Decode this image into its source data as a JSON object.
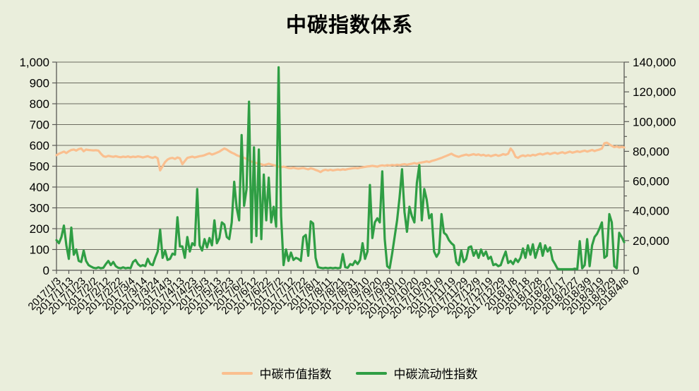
{
  "title": "中碳指数体系",
  "colors": {
    "background": "#EAEEDC",
    "gridline": "#6B6B5F",
    "axis_line": "#595955",
    "market_series": "#FABF8F",
    "liquidity_series": "#2F9E44",
    "text": "#000000"
  },
  "legend": {
    "items": [
      {
        "label": "中碳市值指数",
        "color": "#FABF8F"
      },
      {
        "label": "中碳流动性指数",
        "color": "#2F9E44"
      }
    ]
  },
  "chart_data": {
    "type": "line",
    "title": "中碳指数体系",
    "grid": "horizontal-on",
    "legend_position": "bottom",
    "left_axis": {
      "min": 0,
      "max": 1000,
      "step": 100,
      "tick_labels": [
        "0",
        "100",
        "200",
        "300",
        "400",
        "500",
        "600",
        "700",
        "800",
        "900",
        "1,000"
      ]
    },
    "right_axis": {
      "min": 0,
      "max": 140000,
      "step": 20000,
      "minor_step": 10000,
      "tick_labels": [
        "0",
        "20,000",
        "40,000",
        "60,000",
        "80,000",
        "100,000",
        "120,000",
        "140,000"
      ]
    },
    "x_axis": {
      "first_date": "2017/1/3",
      "last_date": "2018/4/8",
      "tick_interval_days": 10,
      "tick_labels": [
        "2017/1/3",
        "2017/1/13",
        "2017/1/23",
        "2017/2/2",
        "2017/2/12",
        "2017/2/22",
        "2017/3/4",
        "2017/3/14",
        "2017/3/24",
        "2017/4/3",
        "2017/4/13",
        "2017/4/23",
        "2017/5/3",
        "2017/5/13",
        "2017/5/23",
        "2017/6/2",
        "2017/6/12",
        "2017/6/22",
        "2017/7/2",
        "2017/7/12",
        "2017/7/22",
        "2017/8/1",
        "2017/8/11",
        "2017/8/21",
        "2017/8/31",
        "2017/9/10",
        "2017/9/20",
        "2017/9/30",
        "2017/10/10",
        "2017/10/20",
        "2017/10/30",
        "2017/11/9",
        "2017/11/19",
        "2017/11/29",
        "2017/12/9",
        "2017/12/19",
        "2017/12/29",
        "2018/1/8",
        "2018/1/18",
        "2018/1/28",
        "2018/2/7",
        "2018/2/17",
        "2018/2/27",
        "2018/3/9",
        "2018/3/19",
        "2018/3/29",
        "2018/4/8"
      ]
    },
    "sample_start_day": 0,
    "sample_step_days": 2,
    "series": [
      {
        "name": "中碳市值指数",
        "axis": "left",
        "color": "#FABF8F",
        "values": [
          553,
          560,
          565,
          570,
          563,
          572,
          578,
          580,
          575,
          582,
          585,
          572,
          580,
          578,
          577,
          576,
          577,
          575,
          560,
          548,
          545,
          550,
          547,
          545,
          548,
          545,
          543,
          546,
          544,
          547,
          543,
          546,
          544,
          547,
          545,
          542,
          545,
          548,
          543,
          540,
          545,
          538,
          480,
          500,
          520,
          532,
          538,
          540,
          535,
          542,
          538,
          510,
          525,
          540,
          543,
          546,
          542,
          545,
          548,
          550,
          553,
          558,
          562,
          556,
          560,
          565,
          570,
          578,
          585,
          580,
          572,
          565,
          560,
          553,
          548,
          545,
          540,
          535,
          528,
          522,
          518,
          515,
          512,
          510,
          505,
          508,
          512,
          508,
          505,
          502,
          498,
          495,
          498,
          495,
          492,
          490,
          493,
          490,
          488,
          490,
          492,
          488,
          485,
          490,
          487,
          482,
          478,
          472,
          480,
          483,
          480,
          483,
          480,
          482,
          484,
          482,
          485,
          483,
          486,
          488,
          490,
          492,
          490,
          493,
          495,
          497,
          499,
          500,
          502,
          500,
          498,
          502,
          504,
          502,
          505,
          503,
          506,
          504,
          507,
          505,
          508,
          510,
          507,
          510,
          512,
          515,
          512,
          516,
          518,
          520,
          523,
          520,
          525,
          528,
          532,
          536,
          540,
          545,
          550,
          555,
          560,
          553,
          548,
          545,
          550,
          553,
          556,
          552,
          555,
          558,
          554,
          557,
          552,
          555,
          550,
          553,
          548,
          552,
          555,
          550,
          553,
          558,
          555,
          560,
          585,
          570,
          545,
          540,
          548,
          552,
          548,
          553,
          550,
          555,
          552,
          557,
          560,
          556,
          560,
          563,
          558,
          562,
          565,
          560,
          564,
          567,
          562,
          566,
          570,
          565,
          568,
          572,
          568,
          572,
          575,
          570,
          574,
          578,
          573,
          577,
          580,
          585,
          610,
          613,
          605,
          598,
          592,
          595,
          590,
          593,
          590
        ]
      },
      {
        "name": "中碳流动性指数",
        "axis": "right",
        "color": "#2F9E44",
        "values": [
          20300,
          18200,
          22400,
          30100,
          16800,
          7700,
          28700,
          10500,
          14000,
          6300,
          5600,
          13300,
          6300,
          3500,
          2500,
          1700,
          1400,
          2000,
          1400,
          1700,
          4200,
          6300,
          3500,
          5600,
          2800,
          1700,
          1400,
          2000,
          1400,
          1700,
          1400,
          5600,
          7000,
          4200,
          2800,
          3500,
          2800,
          7700,
          4200,
          3500,
          8400,
          12600,
          27300,
          8400,
          13300,
          7000,
          7700,
          11200,
          10500,
          35700,
          16100,
          16100,
          8400,
          22400,
          12600,
          18200,
          16800,
          54600,
          16800,
          13300,
          21000,
          15400,
          21700,
          16800,
          33600,
          18200,
          21700,
          32200,
          30800,
          22400,
          21000,
          32200,
          59500,
          42000,
          33600,
          91000,
          43400,
          54600,
          113400,
          18900,
          82600,
          23100,
          81200,
          21000,
          64400,
          33600,
          62300,
          32200,
          42700,
          29400,
          136500,
          36400,
          3500,
          14000,
          6300,
          11900,
          7000,
          8400,
          7700,
          6300,
          22400,
          23800,
          9800,
          32900,
          31500,
          8400,
          2100,
          1700,
          1400,
          1700,
          1400,
          1700,
          1400,
          1700,
          1400,
          1700,
          10900,
          2100,
          1700,
          4200,
          3500,
          6300,
          4200,
          7000,
          18200,
          7700,
          12600,
          57400,
          21700,
          32200,
          35000,
          32200,
          66500,
          21000,
          2800,
          1400,
          11200,
          22400,
          33600,
          49000,
          67900,
          39200,
          25900,
          42700,
          36400,
          32200,
          58800,
          70700,
          33600,
          54600,
          47600,
          35000,
          37800,
          12600,
          9100,
          11900,
          37800,
          25200,
          23800,
          20300,
          18200,
          16800,
          5600,
          3500,
          13300,
          5600,
          7700,
          15400,
          16100,
          9800,
          13300,
          8400,
          14000,
          9800,
          12600,
          7700,
          9100,
          3500,
          4200,
          2800,
          3500,
          8400,
          12600,
          4900,
          6300,
          4200,
          7700,
          5600,
          8400,
          14700,
          8400,
          16800,
          10500,
          17500,
          8400,
          14000,
          18200,
          9800,
          16800,
          12600,
          15400,
          7000,
          4200,
          1100,
          700,
          700,
          700,
          700,
          700,
          700,
          1100,
          700,
          19600,
          1400,
          3500,
          21000,
          2800,
          16800,
          22400,
          24500,
          28000,
          32200,
          8400,
          9800,
          37800,
          32200,
          2800,
          1400,
          25200,
          22400,
          18900
        ]
      }
    ]
  }
}
